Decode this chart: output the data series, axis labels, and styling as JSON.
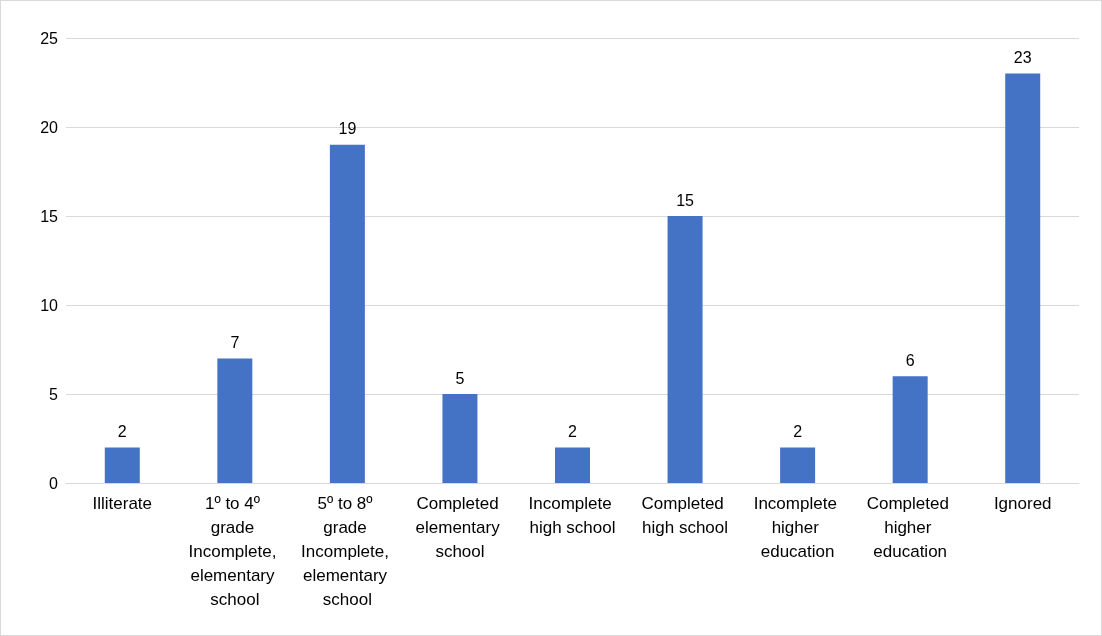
{
  "chart_data": {
    "type": "bar",
    "categories": [
      "Illiterate",
      "1º to 4º grade Incomplete, elementary school",
      "5º to 8º grade Incomplete, elementary school",
      "Completed elementary school",
      "Incomplete high school",
      "Completed high school",
      "Incomplete higher education",
      "Completed higher education",
      "Ignored"
    ],
    "values": [
      2,
      7,
      19,
      5,
      2,
      15,
      2,
      6,
      23
    ],
    "color": "#4472c4",
    "ylim": [
      0,
      25
    ],
    "yticks": [
      0,
      5,
      10,
      15,
      20,
      25
    ],
    "grid": "y",
    "data_labels": true
  }
}
